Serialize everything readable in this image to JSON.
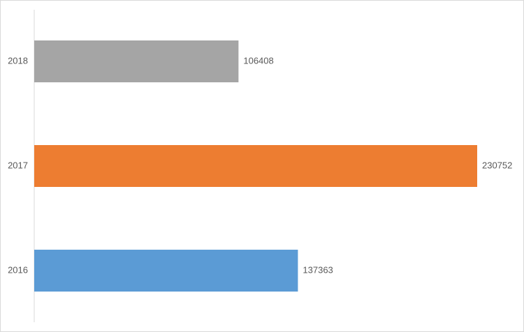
{
  "chart_data": {
    "type": "barh",
    "categories": [
      "2018",
      "2017",
      "2016"
    ],
    "values": [
      106408,
      230752,
      137363
    ],
    "colors": [
      "#a5a5a5",
      "#ed7d31",
      "#5b9bd5"
    ]
  }
}
